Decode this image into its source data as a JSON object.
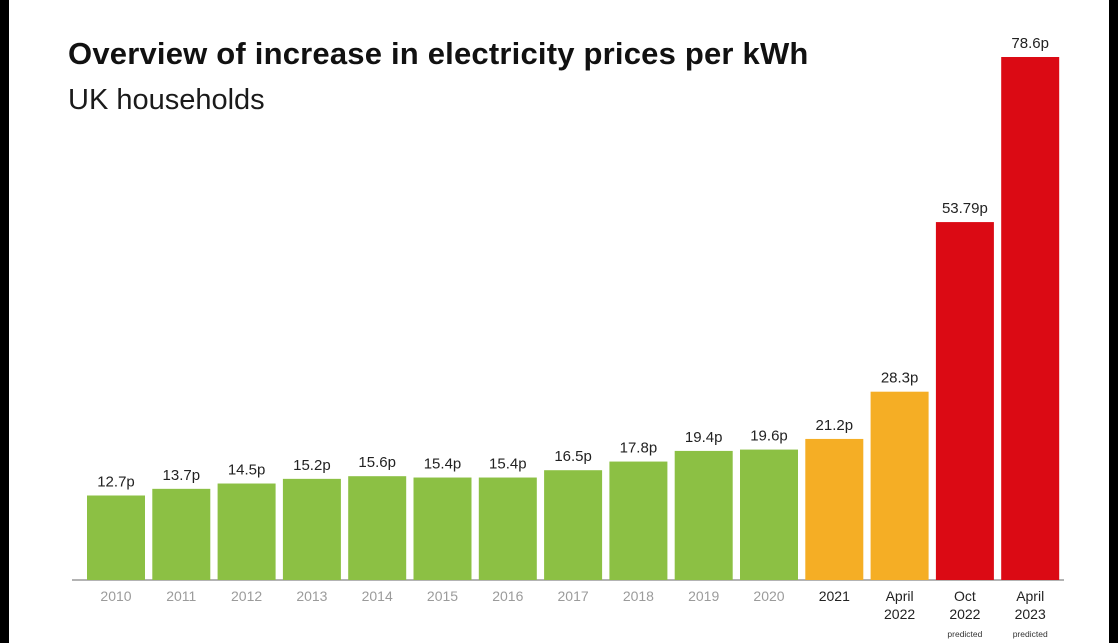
{
  "chart_data": {
    "type": "bar",
    "title": "Overview of increase in electricity prices per kWh",
    "subtitle": "UK households",
    "xlabel": "",
    "ylabel": "",
    "ylim": [
      0,
      80
    ],
    "grid": false,
    "legend": "none",
    "categories": [
      {
        "lines": [
          "2010"
        ],
        "note": ""
      },
      {
        "lines": [
          "2011"
        ],
        "note": ""
      },
      {
        "lines": [
          "2012"
        ],
        "note": ""
      },
      {
        "lines": [
          "2013"
        ],
        "note": ""
      },
      {
        "lines": [
          "2014"
        ],
        "note": ""
      },
      {
        "lines": [
          "2015"
        ],
        "note": ""
      },
      {
        "lines": [
          "2016"
        ],
        "note": ""
      },
      {
        "lines": [
          "2017"
        ],
        "note": ""
      },
      {
        "lines": [
          "2018"
        ],
        "note": ""
      },
      {
        "lines": [
          "2019"
        ],
        "note": ""
      },
      {
        "lines": [
          "2020"
        ],
        "note": ""
      },
      {
        "lines": [
          "2021"
        ],
        "note": ""
      },
      {
        "lines": [
          "April",
          "2022"
        ],
        "note": ""
      },
      {
        "lines": [
          "Oct",
          "2022"
        ],
        "note": "predicted"
      },
      {
        "lines": [
          "April",
          "2023"
        ],
        "note": "predicted"
      }
    ],
    "values": [
      12.7,
      13.7,
      14.5,
      15.2,
      15.6,
      15.4,
      15.4,
      16.5,
      17.8,
      19.4,
      19.6,
      21.2,
      28.3,
      53.79,
      78.6
    ],
    "value_labels": [
      "12.7p",
      "13.7p",
      "14.5p",
      "15.2p",
      "15.6p",
      "15.4p",
      "15.4p",
      "16.5p",
      "17.8p",
      "19.4p",
      "19.6p",
      "21.2p",
      "28.3p",
      "53.79p",
      "78.6p"
    ],
    "bar_colors": [
      "#8cc044",
      "#8cc044",
      "#8cc044",
      "#8cc044",
      "#8cc044",
      "#8cc044",
      "#8cc044",
      "#8cc044",
      "#8cc044",
      "#8cc044",
      "#8cc044",
      "#f5ae25",
      "#f5ae25",
      "#db0a14",
      "#db0a14"
    ],
    "colors": {
      "green": "#8cc044",
      "amber": "#f5ae25",
      "red": "#db0a14",
      "axis": "#9a9a9a",
      "tick_text_past": "#9b9b9b",
      "tick_text_future": "#222222",
      "label_text": "#222222"
    }
  }
}
